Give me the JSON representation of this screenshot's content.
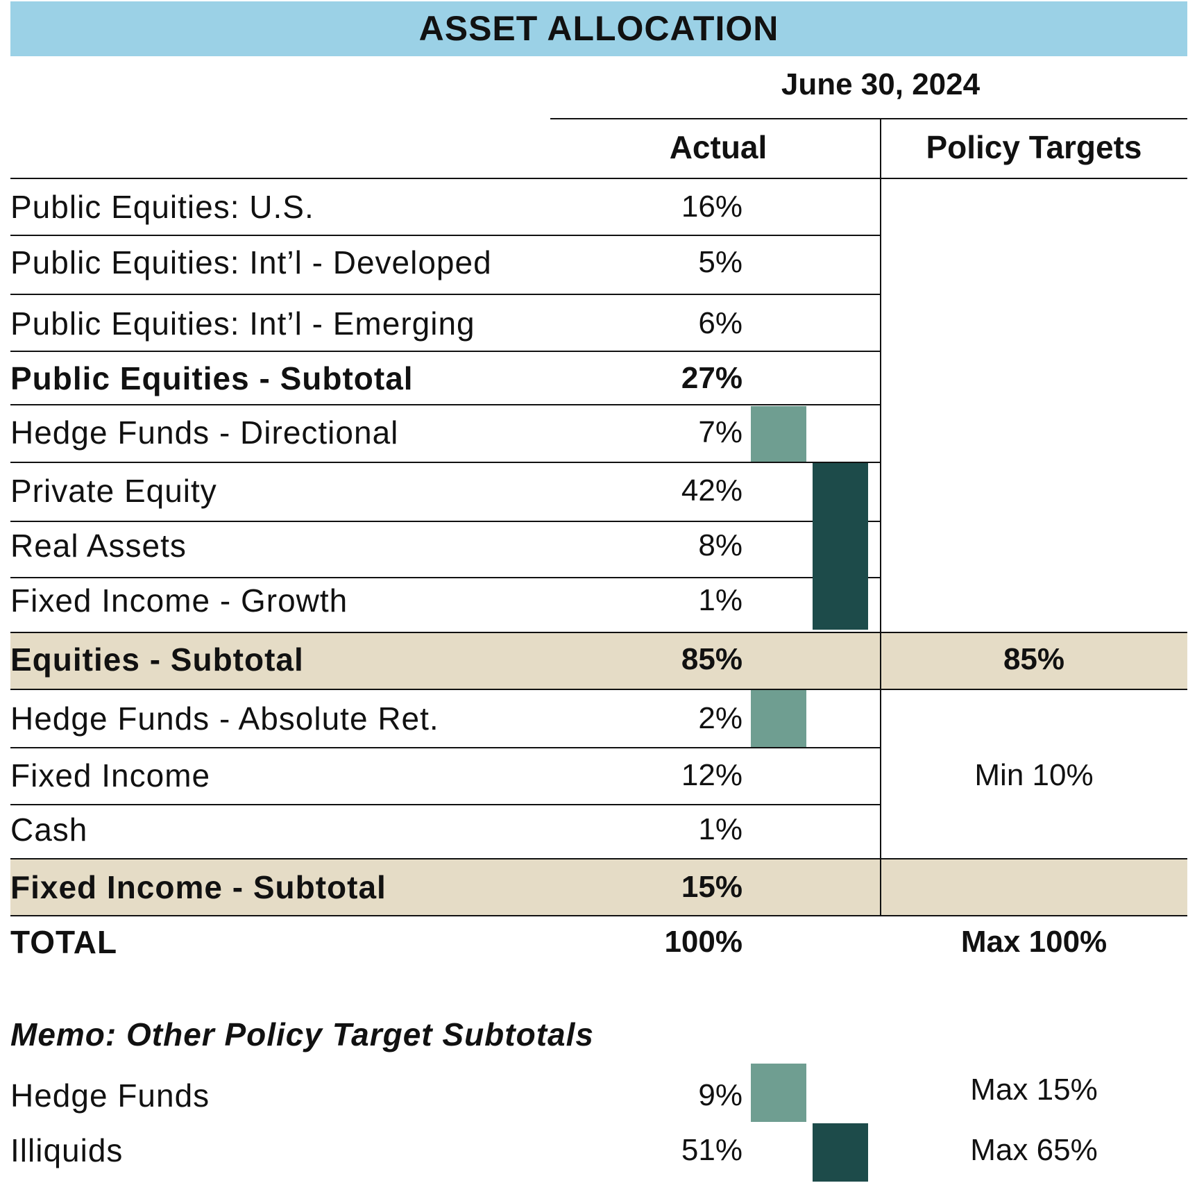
{
  "title": "ASSET ALLOCATION",
  "date": "June 30, 2024",
  "columns": {
    "actual": "Actual",
    "policy": "Policy Targets"
  },
  "rows": [
    {
      "label": "Public Equities: U.S.",
      "actual": "16%"
    },
    {
      "label": "Public Equities: Int’l - Developed",
      "actual": "5%"
    },
    {
      "label": "Public Equities: Int’l - Emerging",
      "actual": "6%"
    },
    {
      "label": "Public Equities - Subtotal",
      "actual": "27%"
    },
    {
      "label": "Hedge Funds - Directional",
      "actual": "7%"
    },
    {
      "label": "Private Equity",
      "actual": "42%"
    },
    {
      "label": "Real Assets",
      "actual": "8%"
    },
    {
      "label": "Fixed Income - Growth",
      "actual": "1%"
    },
    {
      "label": "Equities - Subtotal",
      "actual": "85%",
      "policy": "85%"
    },
    {
      "label": "Hedge Funds - Absolute Ret.",
      "actual": "2%"
    },
    {
      "label": "Fixed Income",
      "actual": "12%",
      "policy": "Min 10%"
    },
    {
      "label": "Cash",
      "actual": "1%"
    },
    {
      "label": "Fixed Income - Subtotal",
      "actual": "15%"
    },
    {
      "label": "TOTAL",
      "actual": "100%",
      "policy": "Max 100%"
    }
  ],
  "memo": {
    "title": "Memo: Other Policy Target Subtotals",
    "rows": [
      {
        "label": "Hedge Funds",
        "actual": "9%",
        "policy": "Max 15%"
      },
      {
        "label": "Illiquids",
        "actual": "51%",
        "policy": "Max 65%"
      }
    ]
  },
  "colors": {
    "header": "#9bd1e6",
    "band": "#e5dcc6",
    "hedge_funds": "#6f9e91",
    "illiquids": "#1d4b4a"
  }
}
